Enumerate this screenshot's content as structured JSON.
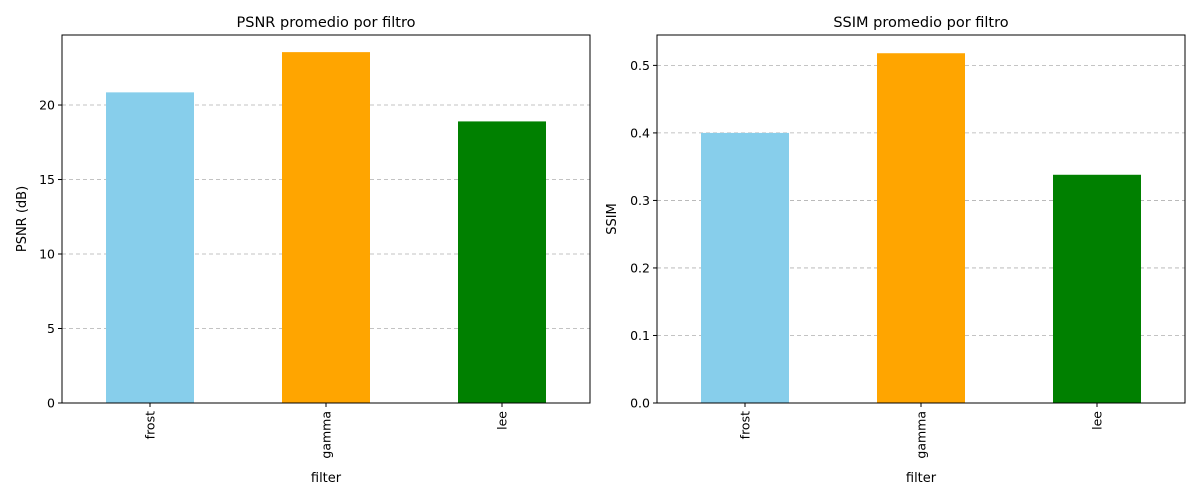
{
  "chart_data": [
    {
      "type": "bar",
      "title": "PSNR promedio por filtro",
      "xlabel": "filter",
      "ylabel": "PSNR (dB)",
      "categories": [
        "frost",
        "gamma",
        "lee"
      ],
      "values": [
        20.85,
        23.55,
        18.9
      ],
      "colors": [
        "#87ceeb",
        "#ffa500",
        "#008000"
      ],
      "ylim": [
        0,
        24.7
      ],
      "yticks": [
        0,
        5,
        10,
        15,
        20
      ],
      "ytick_labels": [
        "0",
        "5",
        "10",
        "15",
        "20"
      ],
      "grid": "y-dashed",
      "legend": "none"
    },
    {
      "type": "bar",
      "title": "SSIM promedio por filtro",
      "xlabel": "filter",
      "ylabel": "SSIM",
      "categories": [
        "frost",
        "gamma",
        "lee"
      ],
      "values": [
        0.4,
        0.518,
        0.338
      ],
      "colors": [
        "#87ceeb",
        "#ffa500",
        "#008000"
      ],
      "ylim": [
        0,
        0.545
      ],
      "yticks": [
        0,
        0.1,
        0.2,
        0.3,
        0.4,
        0.5
      ],
      "ytick_labels": [
        "0.0",
        "0.1",
        "0.2",
        "0.3",
        "0.4",
        "0.5"
      ],
      "grid": "y-dashed",
      "legend": "none"
    }
  ]
}
